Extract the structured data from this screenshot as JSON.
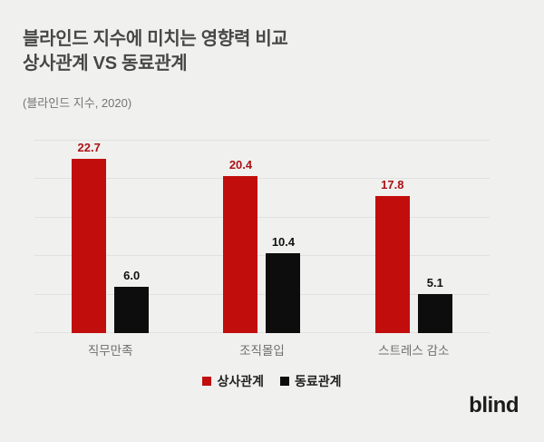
{
  "header": {
    "title_line1": "블라인드 지수에 미치는 영향력 비교",
    "title_line2": "상사관계 VS 동료관계",
    "subtitle": "(블라인드 지수, 2020)"
  },
  "chart_data": {
    "type": "bar",
    "title": "블라인드 지수에 미치는 영향력 비교 — 상사관계 VS 동료관계",
    "source": "(블라인드 지수, 2020)",
    "categories": [
      "직무만족",
      "조직몰입",
      "스트레스 감소"
    ],
    "series": [
      {
        "name": "상사관계",
        "color": "#c20d0d",
        "label_color": "#ab1117",
        "values": [
          22.7,
          20.4,
          17.8
        ]
      },
      {
        "name": "동료관계",
        "color": "#0d0d0d",
        "label_color": "#111111",
        "values": [
          6.0,
          10.4,
          5.1
        ]
      }
    ],
    "xlabel": "",
    "ylabel": "",
    "ylim": [
      0,
      25
    ],
    "gridline_values": [
      0,
      5,
      10,
      15,
      20,
      25
    ],
    "grid": "horizontal",
    "value_labels": "above-bars, one decimal",
    "legend_position": "bottom-center"
  },
  "legend": {
    "items": [
      {
        "label": "상사관계",
        "color": "#c20d0d"
      },
      {
        "label": "동료관계",
        "color": "#0d0d0d"
      }
    ]
  },
  "footer": {
    "logo": "blind"
  },
  "colors": {
    "background": "#f0f0ee",
    "title": "#474747",
    "subtitle": "#757575",
    "gridline": "#e1e1df",
    "category_label": "#6e6e6e",
    "accent_red": "#c20d0d",
    "bar_black": "#0d0d0d"
  }
}
